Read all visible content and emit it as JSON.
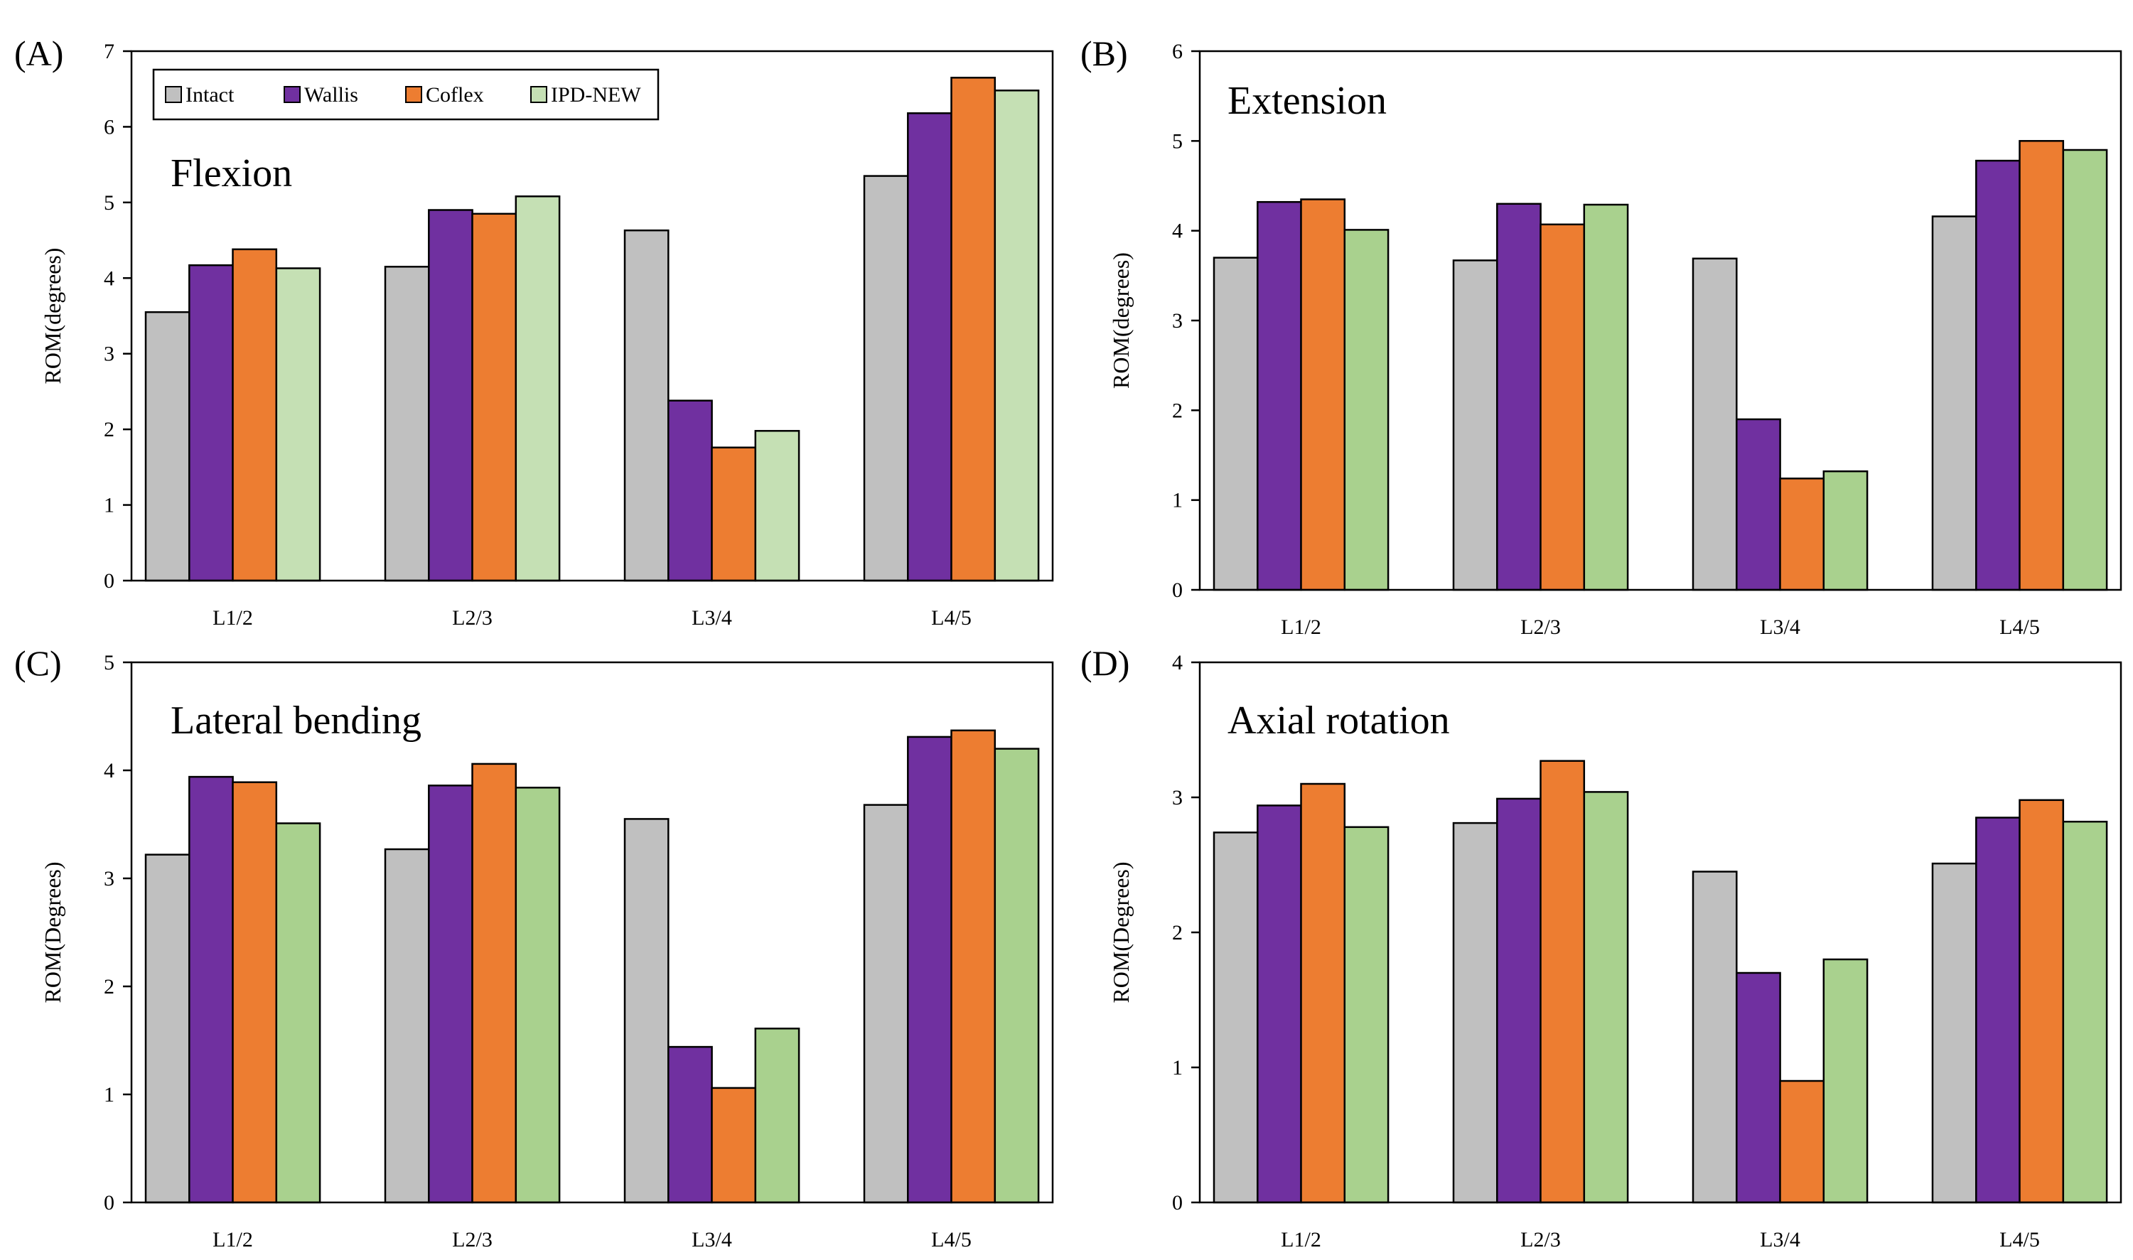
{
  "figure": {
    "legend": [
      "Intact",
      "Wallis",
      "Coflex",
      "IPD-NEW"
    ]
  },
  "chart_data": [
    {
      "type": "bar",
      "panel_label": "(A)",
      "title": "Flexion",
      "xlabel": "",
      "ylabel": "ROM(degrees)",
      "categories": [
        "L1/2",
        "L2/3",
        "L3/4",
        "L4/5"
      ],
      "ylim": [
        0,
        7
      ],
      "yticks": [
        0,
        1,
        2,
        3,
        4,
        5,
        6,
        7
      ],
      "show_legend": true,
      "legend_position": "top-left",
      "series": [
        {
          "name": "Intact",
          "color": "#c0c0c0",
          "values": [
            3.55,
            4.15,
            4.63,
            5.35
          ]
        },
        {
          "name": "Wallis",
          "color": "#7030a0",
          "values": [
            4.17,
            4.9,
            2.38,
            6.18
          ]
        },
        {
          "name": "Coflex",
          "color": "#ed7d31",
          "values": [
            4.38,
            4.85,
            1.76,
            6.65
          ]
        },
        {
          "name": "IPD-NEW",
          "color": "#c5e0b4",
          "values": [
            4.13,
            5.08,
            1.98,
            6.48
          ]
        }
      ]
    },
    {
      "type": "bar",
      "panel_label": "(B)",
      "title": "Extension",
      "xlabel": "",
      "ylabel": "ROM(degrees)",
      "categories": [
        "L1/2",
        "L2/3",
        "L3/4",
        "L4/5"
      ],
      "ylim": [
        0,
        6
      ],
      "yticks": [
        0,
        1,
        2,
        3,
        4,
        5,
        6
      ],
      "show_legend": false,
      "series": [
        {
          "name": "Intact",
          "color": "#c0c0c0",
          "values": [
            3.7,
            3.67,
            3.69,
            4.16
          ]
        },
        {
          "name": "Wallis",
          "color": "#7030a0",
          "values": [
            4.32,
            4.3,
            1.9,
            4.78
          ]
        },
        {
          "name": "Coflex",
          "color": "#ed7d31",
          "values": [
            4.35,
            4.07,
            1.24,
            5.0
          ]
        },
        {
          "name": "IPD-NEW",
          "color": "#a9d18e",
          "values": [
            4.01,
            4.29,
            1.32,
            4.9
          ]
        }
      ]
    },
    {
      "type": "bar",
      "panel_label": "(C)",
      "title": "Lateral bending",
      "xlabel": "",
      "ylabel": "ROM(Degrees)",
      "categories": [
        "L1/2",
        "L2/3",
        "L3/4",
        "L4/5"
      ],
      "ylim": [
        0,
        5
      ],
      "yticks": [
        0,
        1,
        2,
        3,
        4,
        5
      ],
      "show_legend": false,
      "series": [
        {
          "name": "Intact",
          "color": "#c0c0c0",
          "values": [
            3.22,
            3.27,
            3.55,
            3.68
          ]
        },
        {
          "name": "Wallis",
          "color": "#7030a0",
          "values": [
            3.94,
            3.86,
            1.44,
            4.31
          ]
        },
        {
          "name": "Coflex",
          "color": "#ed7d31",
          "values": [
            3.89,
            4.06,
            1.06,
            4.37
          ]
        },
        {
          "name": "IPD-NEW",
          "color": "#a9d18e",
          "values": [
            3.51,
            3.84,
            1.61,
            4.2
          ]
        }
      ]
    },
    {
      "type": "bar",
      "panel_label": "(D)",
      "title": "Axial rotation",
      "xlabel": "",
      "ylabel": "ROM(Degrees)",
      "categories": [
        "L1/2",
        "L2/3",
        "L3/4",
        "L4/5"
      ],
      "ylim": [
        0,
        4
      ],
      "yticks": [
        0,
        1,
        2,
        3,
        4
      ],
      "show_legend": false,
      "series": [
        {
          "name": "Intact",
          "color": "#c0c0c0",
          "values": [
            2.74,
            2.81,
            2.45,
            2.51
          ]
        },
        {
          "name": "Wallis",
          "color": "#7030a0",
          "values": [
            2.94,
            2.99,
            1.7,
            2.85
          ]
        },
        {
          "name": "Coflex",
          "color": "#ed7d31",
          "values": [
            3.1,
            3.27,
            0.9,
            2.98
          ]
        },
        {
          "name": "IPD-NEW",
          "color": "#a9d18e",
          "values": [
            2.78,
            3.04,
            1.8,
            2.82
          ]
        }
      ]
    }
  ]
}
